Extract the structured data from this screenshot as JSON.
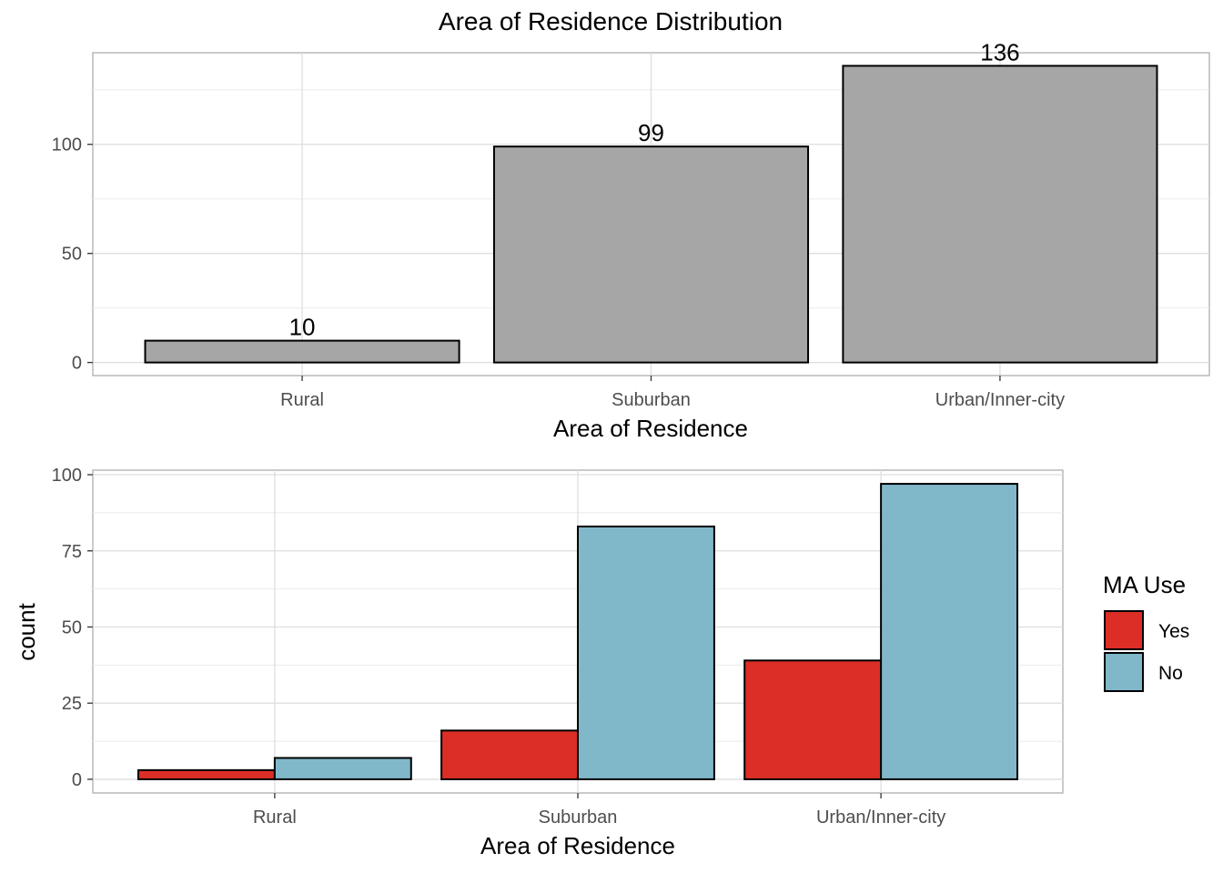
{
  "chart_data": [
    {
      "type": "bar",
      "title": "Area of Residence Distribution",
      "xlabel": "Area of Residence",
      "ylabel": "",
      "categories": [
        "Rural",
        "Suburban",
        "Urban/Inner-city"
      ],
      "values": [
        10,
        99,
        136
      ],
      "data_labels": [
        "10",
        "99",
        "136"
      ],
      "yticks": [
        0,
        50,
        100
      ],
      "ylim": [
        -6,
        142
      ],
      "grid": true,
      "colors": {
        "bar": "#a6a6a6",
        "outline": "#000000"
      }
    },
    {
      "type": "bar",
      "title": "",
      "xlabel": "Area of Residence",
      "ylabel": "count",
      "categories": [
        "Rural",
        "Suburban",
        "Urban/Inner-city"
      ],
      "series": [
        {
          "name": "Yes",
          "values": [
            3,
            16,
            39
          ],
          "color": "#dc2e27"
        },
        {
          "name": "No",
          "values": [
            7,
            83,
            97
          ],
          "color": "#80b8ca"
        }
      ],
      "legend": {
        "title": "MA Use",
        "placement": "right"
      },
      "yticks": [
        0,
        25,
        50,
        75,
        100
      ],
      "ylim": [
        -4.5,
        101.5
      ],
      "grid": true
    }
  ]
}
